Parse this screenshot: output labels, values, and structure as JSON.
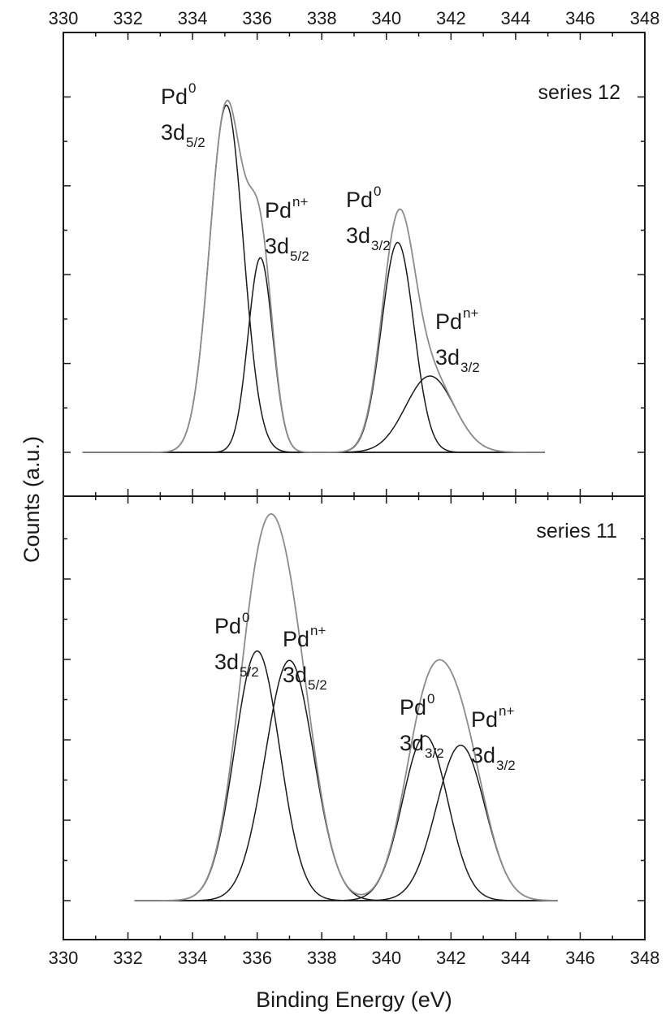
{
  "chart_data": {
    "type": "line",
    "xlabel": "Binding Energy (eV)",
    "ylabel": "Counts (a.u.)",
    "xlim": [
      330,
      348
    ],
    "x_ticks": [
      330,
      332,
      334,
      336,
      338,
      340,
      342,
      344,
      346,
      348
    ],
    "x_tick_labels": [
      "330",
      "332",
      "334",
      "336",
      "338",
      "340",
      "342",
      "344",
      "346",
      "348"
    ],
    "grid": false,
    "colors": {
      "component": "#1a1a1a",
      "envelope": "#8c8c8c",
      "axis": "#1a1a1a"
    },
    "panels": [
      {
        "title": "series 12",
        "ylim": [
          0,
          1.0
        ],
        "x_range": [
          330.6,
          344.9
        ],
        "components": [
          {
            "center": 335.05,
            "height": 0.91,
            "sigma": 0.52,
            "label_main": "Pd",
            "label_sup": "0",
            "label_line2": "3d",
            "label_sub": "5/2"
          },
          {
            "center": 336.1,
            "height": 0.51,
            "sigma": 0.38,
            "label_main": "Pd",
            "label_sup": "n+",
            "label_line2": "3d",
            "label_sub": "5/2"
          },
          {
            "center": 340.35,
            "height": 0.55,
            "sigma": 0.5,
            "label_main": "Pd",
            "label_sup": "0",
            "label_line2": "3d",
            "label_sub": "3/2"
          },
          {
            "center": 341.35,
            "height": 0.2,
            "sigma": 0.75,
            "label_main": "Pd",
            "label_sup": "n+",
            "label_line2": "3d",
            "label_sub": "3/2"
          }
        ],
        "envelope": {
          "description": "sum of components"
        }
      },
      {
        "title": "series 11",
        "ylim": [
          0,
          1.0
        ],
        "x_range": [
          332.2,
          345.3
        ],
        "components": [
          {
            "center": 336.0,
            "height": 0.53,
            "sigma": 0.7,
            "label_main": "Pd",
            "label_sup": "0",
            "label_line2": "3d",
            "label_sub": "5/2"
          },
          {
            "center": 337.0,
            "height": 0.51,
            "sigma": 0.75,
            "label_main": "Pd",
            "label_sup": "n+",
            "label_line2": "3d",
            "label_sub": "5/2"
          },
          {
            "center": 341.2,
            "height": 0.35,
            "sigma": 0.7,
            "label_main": "Pd",
            "label_sup": "0",
            "label_line2": "3d",
            "label_sub": "3/2"
          },
          {
            "center": 342.3,
            "height": 0.33,
            "sigma": 0.75,
            "label_main": "Pd",
            "label_sup": "n+",
            "label_line2": "3d",
            "label_sub": "3/2"
          }
        ],
        "envelope": {
          "description": "sum of components"
        }
      }
    ]
  }
}
